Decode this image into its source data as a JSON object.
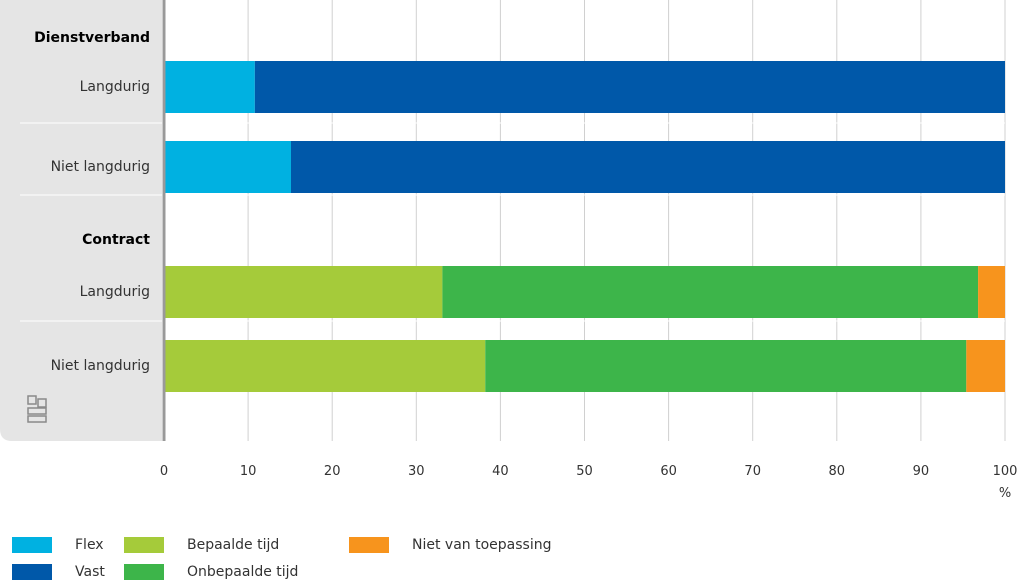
{
  "chart_data": {
    "type": "bar",
    "orientation": "horizontal",
    "stacked": true,
    "xlim": [
      0,
      100
    ],
    "xticks": [
      0,
      10,
      20,
      30,
      40,
      50,
      60,
      70,
      80,
      90,
      100
    ],
    "xunit": "%",
    "grid": true,
    "groups": [
      {
        "label": "Dienstverband",
        "rows": [
          {
            "label": "Langdurig",
            "segments": [
              {
                "series": "Flex",
                "value": 10.8
              },
              {
                "series": "Vast",
                "value": 89.2
              }
            ]
          },
          {
            "label": "Niet langdurig",
            "segments": [
              {
                "series": "Flex",
                "value": 15.1
              },
              {
                "series": "Vast",
                "value": 84.9
              }
            ]
          }
        ]
      },
      {
        "label": "Contract",
        "rows": [
          {
            "label": "Langdurig",
            "segments": [
              {
                "series": "Bepaalde tijd",
                "value": 33.1
              },
              {
                "series": "Onbepaalde tijd",
                "value": 63.7
              },
              {
                "series": "Niet van toepassing",
                "value": 3.2
              }
            ]
          },
          {
            "label": "Niet langdurig",
            "segments": [
              {
                "series": "Bepaalde tijd",
                "value": 38.2
              },
              {
                "series": "Onbepaalde tijd",
                "value": 57.2
              },
              {
                "series": "Niet van toepassing",
                "value": 4.6
              }
            ]
          }
        ]
      }
    ],
    "legend": [
      {
        "name": "Flex",
        "color": "#00b1e1"
      },
      {
        "name": "Vast",
        "color": "#0058a9"
      },
      {
        "name": "Bepaalde tijd",
        "color": "#a5cb3a"
      },
      {
        "name": "Onbepaalde tijd",
        "color": "#3db54a"
      },
      {
        "name": "Niet van toepassing",
        "color": "#f7941d"
      }
    ],
    "legend_position": "bottom-left"
  },
  "colors": {
    "panel_background": "#e5e5e5",
    "axis": "#999999",
    "grid": "#d0d0d0",
    "logo": "cbs-logo-icon"
  }
}
